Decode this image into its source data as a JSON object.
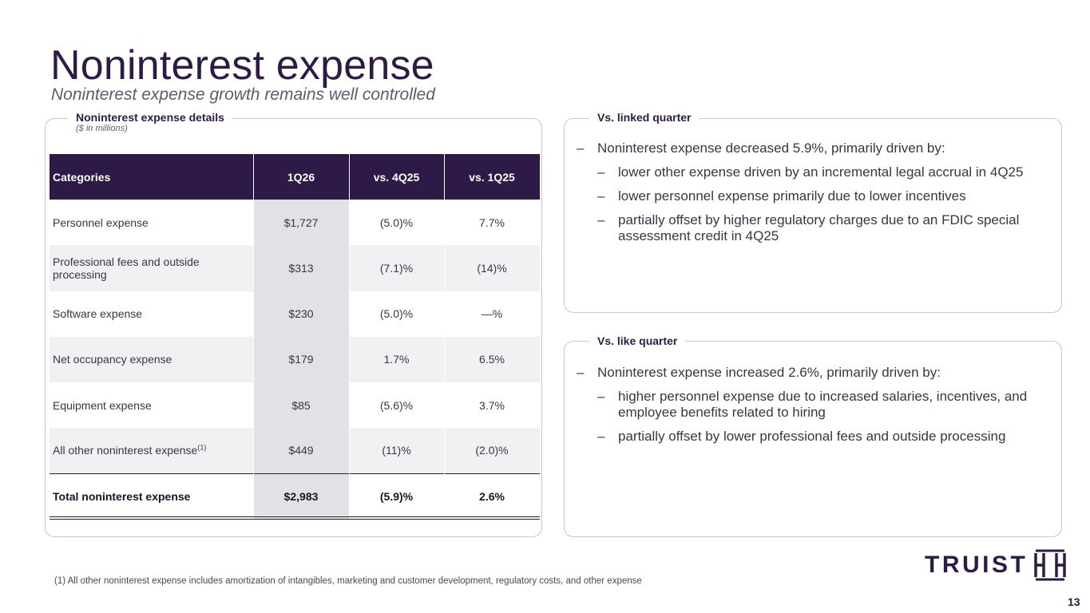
{
  "header": {
    "title": "Noninterest expense",
    "subtitle": "Noninterest expense growth remains well controlled"
  },
  "left_panel": {
    "label": "Noninterest expense details",
    "sublabel": "($ in millions)",
    "table": {
      "headers": [
        "Categories",
        "1Q26",
        "vs. 4Q25",
        "vs. 1Q25"
      ],
      "rows": [
        {
          "category": "Personnel expense",
          "q": "$1,727",
          "vs_lq": "(5.0)%",
          "vs_yq": "7.7%"
        },
        {
          "category": "Professional fees and outside processing",
          "q": "$313",
          "vs_lq": "(7.1)%",
          "vs_yq": "(14)%"
        },
        {
          "category": "Software expense",
          "q": "$230",
          "vs_lq": "(5.0)%",
          "vs_yq": "—%"
        },
        {
          "category": "Net occupancy expense",
          "q": "$179",
          "vs_lq": "1.7%",
          "vs_yq": "6.5%"
        },
        {
          "category": "Equipment expense",
          "q": "$85",
          "vs_lq": "(5.6)%",
          "vs_yq": "3.7%"
        },
        {
          "category": "All other noninterest expense",
          "footnote_ref": "(1)",
          "q": "$449",
          "vs_lq": "(11)%",
          "vs_yq": "(2.0)%"
        }
      ],
      "total": {
        "category": "Total noninterest expense",
        "q": "$2,983",
        "vs_lq": "(5.9)%",
        "vs_yq": "2.6%"
      }
    }
  },
  "linked_quarter": {
    "label": "Vs. linked quarter",
    "main": "Noninterest expense decreased 5.9%, primarily driven by:",
    "subs": [
      "lower other expense driven by an incremental legal accrual in 4Q25",
      "lower personnel expense primarily due to lower incentives",
      "partially offset by higher regulatory charges due to an FDIC special assessment credit in 4Q25"
    ]
  },
  "like_quarter": {
    "label": "Vs. like quarter",
    "main": "Noninterest expense increased 2.6%, primarily driven by:",
    "subs": [
      "higher personnel expense due to increased salaries, incentives, and employee benefits related to hiring",
      "partially offset by lower professional fees and outside processing"
    ]
  },
  "bullet_dash": "–",
  "footnote": "(1)  All other noninterest expense includes amortization of intangibles, marketing and customer development, regulatory costs, and other expense",
  "page_number": "13",
  "logo": {
    "text": "TRUIST",
    "icon": "truist-logo-mark-icon",
    "color": "#2e1a47"
  },
  "colors": {
    "brand_purple": "#2e1a47",
    "highlight_column": "#e2e1e6",
    "stripe": "#f1f1f3",
    "border": "#c9c6cf"
  }
}
